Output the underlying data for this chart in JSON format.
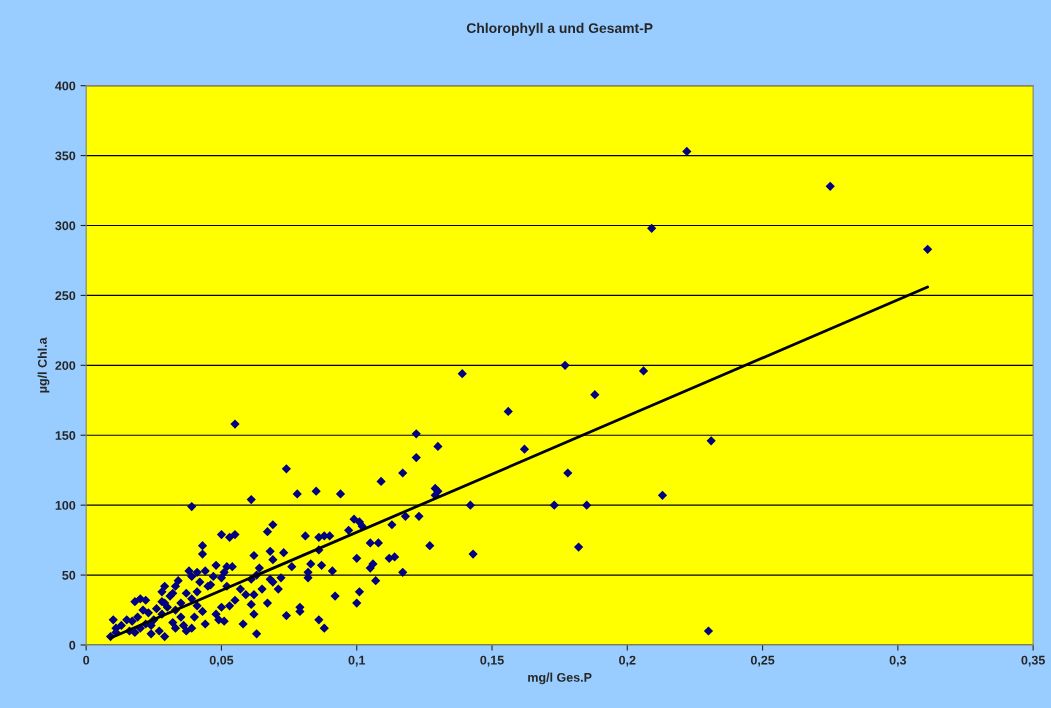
{
  "chart_data": {
    "type": "scatter",
    "title": "Chlorophyll a und Gesamt-P",
    "xlabel": "mg/l Ges.P",
    "ylabel": "µg/l Chl.a",
    "xlim": [
      0,
      0.35
    ],
    "ylim": [
      0,
      400
    ],
    "xticks": [
      0,
      {
        "value": 0.05,
        "label": "0,05"
      },
      {
        "value": 0.1,
        "label": "0,1"
      },
      {
        "value": 0.15,
        "label": "0,15"
      },
      {
        "value": 0.2,
        "label": "0,2"
      },
      {
        "value": 0.25,
        "label": "0,25"
      },
      {
        "value": 0.3,
        "label": "0,3"
      },
      {
        "value": 0.35,
        "label": "0,35"
      }
    ],
    "yticks": [
      0,
      50,
      100,
      150,
      200,
      250,
      300,
      350,
      400
    ],
    "grid": "y",
    "marker": "diamond",
    "series": [
      {
        "color": "#000080",
        "x": [
          0.222,
          0.275,
          0.209,
          0.311,
          0.177,
          0.206,
          0.139,
          0.188,
          0.156,
          0.162,
          0.231,
          0.178,
          0.213,
          0.173,
          0.185,
          0.142,
          0.182,
          0.143,
          0.23,
          0.122,
          0.13,
          0.122,
          0.117,
          0.129,
          0.13,
          0.129,
          0.109,
          0.118,
          0.123,
          0.127,
          0.117,
          0.113,
          0.105,
          0.108,
          0.106,
          0.105,
          0.107,
          0.114,
          0.112,
          0.101,
          0.102,
          0.099,
          0.097,
          0.094,
          0.085,
          0.078,
          0.074,
          0.055,
          0.039,
          0.061,
          0.069,
          0.067,
          0.088,
          0.09,
          0.086,
          0.081,
          0.086,
          0.087,
          0.083,
          0.082,
          0.082,
          0.091,
          0.092,
          0.1,
          0.101,
          0.1,
          0.079,
          0.079,
          0.086,
          0.088,
          0.076,
          0.073,
          0.068,
          0.069,
          0.072,
          0.069,
          0.064,
          0.068,
          0.065,
          0.067,
          0.071,
          0.062,
          0.063,
          0.061,
          0.062,
          0.061,
          0.062,
          0.063,
          0.074,
          0.059,
          0.057,
          0.058,
          0.055,
          0.053,
          0.05,
          0.054,
          0.052,
          0.051,
          0.048,
          0.05,
          0.047,
          0.046,
          0.052,
          0.055,
          0.053,
          0.05,
          0.048,
          0.051,
          0.049,
          0.043,
          0.043,
          0.044,
          0.041,
          0.038,
          0.039,
          0.042,
          0.045,
          0.041,
          0.037,
          0.039,
          0.035,
          0.041,
          0.043,
          0.04,
          0.044,
          0.039,
          0.037,
          0.034,
          0.033,
          0.032,
          0.031,
          0.029,
          0.03,
          0.033,
          0.035,
          0.032,
          0.033,
          0.036,
          0.029,
          0.028,
          0.028,
          0.026,
          0.028,
          0.025,
          0.024,
          0.027,
          0.029,
          0.022,
          0.02,
          0.018,
          0.021,
          0.023,
          0.019,
          0.017,
          0.022,
          0.02,
          0.018,
          0.015,
          0.013,
          0.011,
          0.01,
          0.009,
          0.011,
          0.016,
          0.024
        ],
        "values": [
          353,
          328,
          298,
          283,
          200,
          196,
          194,
          179,
          167,
          140,
          146,
          123,
          107,
          100,
          100,
          100,
          70,
          65,
          10,
          151,
          142,
          134,
          123,
          112,
          110,
          107,
          117,
          92,
          92,
          71,
          52,
          86,
          73,
          73,
          58,
          55,
          46,
          63,
          62,
          88,
          85,
          90,
          82,
          108,
          110,
          108,
          126,
          158,
          99,
          104,
          86,
          81,
          78,
          78,
          77,
          78,
          68,
          57,
          58,
          52,
          48,
          53,
          35,
          62,
          38,
          30,
          27,
          24,
          18,
          12,
          56,
          66,
          67,
          61,
          48,
          45,
          55,
          47,
          40,
          30,
          40,
          64,
          50,
          47,
          36,
          29,
          22,
          8,
          21,
          36,
          40,
          15,
          79,
          77,
          79,
          56,
          56,
          52,
          57,
          48,
          49,
          43,
          42,
          32,
          28,
          27,
          22,
          17,
          18,
          71,
          65,
          53,
          52,
          53,
          49,
          45,
          42,
          38,
          37,
          33,
          30,
          28,
          24,
          20,
          15,
          12,
          10,
          46,
          42,
          37,
          35,
          30,
          27,
          25,
          20,
          16,
          12,
          14,
          42,
          38,
          31,
          26,
          22,
          18,
          14,
          10,
          6,
          32,
          33,
          31,
          25,
          23,
          20,
          17,
          15,
          12,
          9,
          18,
          14,
          12,
          18,
          6,
          9,
          10,
          8
        ]
      },
      {
        "type": "line",
        "color": "#000000",
        "marker": "none",
        "line_style": "solid",
        "x": [
          0.009,
          0.311
        ],
        "values": [
          5,
          256
        ]
      }
    ]
  }
}
